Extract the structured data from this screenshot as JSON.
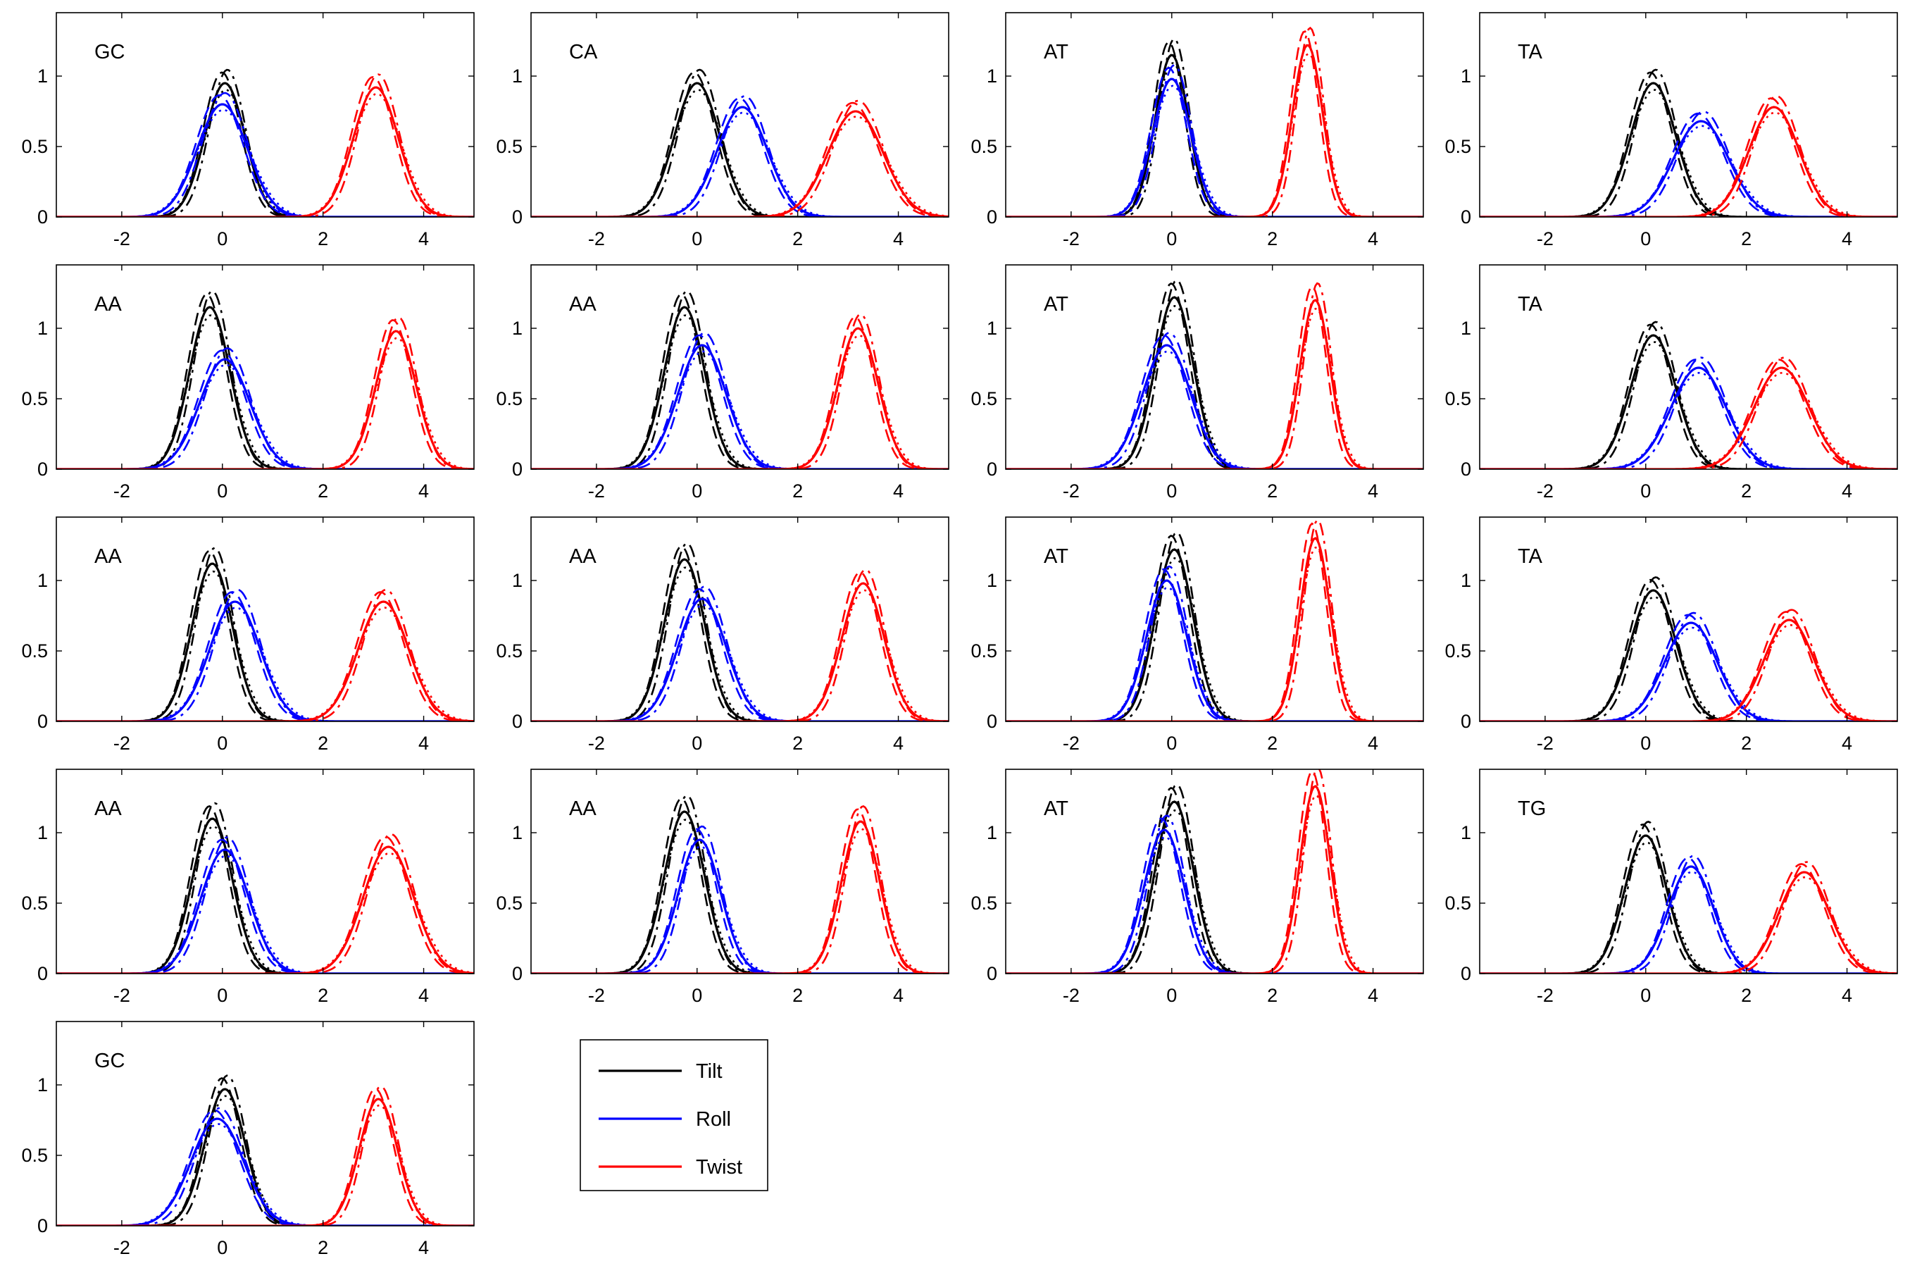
{
  "figure": {
    "xlim": [
      -3.3,
      5
    ],
    "ylim": [
      0,
      1.45
    ],
    "xticks": [
      -2,
      0,
      2,
      4
    ],
    "yticks": [
      0,
      0.5,
      1
    ],
    "ytick_labels": [
      "0",
      "0.5",
      "1"
    ],
    "xtick_labels": [
      "-2",
      "0",
      "2",
      "4"
    ],
    "colors": {
      "Tilt": "#000000",
      "Roll": "#0000ff",
      "Twist": "#ff0000"
    },
    "legend": {
      "items": [
        "Tilt",
        "Roll",
        "Twist"
      ],
      "placement": "below the second column, last row"
    }
  },
  "chart_data": [
    {
      "type": "line",
      "label": "GC",
      "series": [
        {
          "name": "Tilt",
          "mu": 0.05,
          "sigma": 0.4,
          "peak": 0.95
        },
        {
          "name": "Roll",
          "mu": 0,
          "sigma": 0.5,
          "peak": 0.8
        },
        {
          "name": "Twist",
          "mu": 3.05,
          "sigma": 0.45,
          "peak": 0.92
        }
      ]
    },
    {
      "type": "line",
      "label": "CA",
      "series": [
        {
          "name": "Tilt",
          "mu": 0,
          "sigma": 0.45,
          "peak": 0.95
        },
        {
          "name": "Roll",
          "mu": 0.9,
          "sigma": 0.5,
          "peak": 0.78
        },
        {
          "name": "Twist",
          "mu": 3.15,
          "sigma": 0.55,
          "peak": 0.75
        }
      ]
    },
    {
      "type": "line",
      "label": "AT",
      "series": [
        {
          "name": "Tilt",
          "mu": 0,
          "sigma": 0.33,
          "peak": 1.15
        },
        {
          "name": "Roll",
          "mu": 0,
          "sigma": 0.38,
          "peak": 0.98
        },
        {
          "name": "Twist",
          "mu": 2.7,
          "sigma": 0.3,
          "peak": 1.22
        }
      ]
    },
    {
      "type": "line",
      "label": "TA",
      "series": [
        {
          "name": "Tilt",
          "mu": 0.15,
          "sigma": 0.45,
          "peak": 0.95
        },
        {
          "name": "Roll",
          "mu": 1.1,
          "sigma": 0.55,
          "peak": 0.68
        },
        {
          "name": "Twist",
          "mu": 2.55,
          "sigma": 0.5,
          "peak": 0.78
        }
      ]
    },
    {
      "type": "line",
      "label": "AA",
      "series": [
        {
          "name": "Tilt",
          "mu": -0.25,
          "sigma": 0.4,
          "peak": 1.15
        },
        {
          "name": "Roll",
          "mu": 0.05,
          "sigma": 0.5,
          "peak": 0.78
        },
        {
          "name": "Twist",
          "mu": 3.45,
          "sigma": 0.4,
          "peak": 0.98
        }
      ]
    },
    {
      "type": "line",
      "label": "AA",
      "series": [
        {
          "name": "Tilt",
          "mu": -0.25,
          "sigma": 0.4,
          "peak": 1.15
        },
        {
          "name": "Roll",
          "mu": 0.1,
          "sigma": 0.48,
          "peak": 0.88
        },
        {
          "name": "Twist",
          "mu": 3.2,
          "sigma": 0.4,
          "peak": 1.0
        }
      ]
    },
    {
      "type": "line",
      "label": "AT",
      "series": [
        {
          "name": "Tilt",
          "mu": 0.05,
          "sigma": 0.38,
          "peak": 1.22
        },
        {
          "name": "Roll",
          "mu": -0.1,
          "sigma": 0.48,
          "peak": 0.88
        },
        {
          "name": "Twist",
          "mu": 2.85,
          "sigma": 0.3,
          "peak": 1.2
        }
      ]
    },
    {
      "type": "line",
      "label": "TA",
      "series": [
        {
          "name": "Tilt",
          "mu": 0.15,
          "sigma": 0.45,
          "peak": 0.95
        },
        {
          "name": "Roll",
          "mu": 1.05,
          "sigma": 0.55,
          "peak": 0.72
        },
        {
          "name": "Twist",
          "mu": 2.7,
          "sigma": 0.55,
          "peak": 0.72
        }
      ]
    },
    {
      "type": "line",
      "label": "AA",
      "series": [
        {
          "name": "Tilt",
          "mu": -0.2,
          "sigma": 0.4,
          "peak": 1.12
        },
        {
          "name": "Roll",
          "mu": 0.25,
          "sigma": 0.5,
          "peak": 0.85
        },
        {
          "name": "Twist",
          "mu": 3.2,
          "sigma": 0.5,
          "peak": 0.85
        }
      ]
    },
    {
      "type": "line",
      "label": "AA",
      "series": [
        {
          "name": "Tilt",
          "mu": -0.25,
          "sigma": 0.4,
          "peak": 1.15
        },
        {
          "name": "Roll",
          "mu": 0.1,
          "sigma": 0.48,
          "peak": 0.87
        },
        {
          "name": "Twist",
          "mu": 3.3,
          "sigma": 0.42,
          "peak": 0.98
        }
      ]
    },
    {
      "type": "line",
      "label": "AT",
      "series": [
        {
          "name": "Tilt",
          "mu": 0.05,
          "sigma": 0.38,
          "peak": 1.22
        },
        {
          "name": "Roll",
          "mu": -0.1,
          "sigma": 0.4,
          "peak": 1.0
        },
        {
          "name": "Twist",
          "mu": 2.85,
          "sigma": 0.3,
          "peak": 1.3
        }
      ]
    },
    {
      "type": "line",
      "label": "TA",
      "series": [
        {
          "name": "Tilt",
          "mu": 0.15,
          "sigma": 0.45,
          "peak": 0.93
        },
        {
          "name": "Roll",
          "mu": 0.9,
          "sigma": 0.52,
          "peak": 0.7
        },
        {
          "name": "Twist",
          "mu": 2.85,
          "sigma": 0.5,
          "peak": 0.72
        }
      ]
    },
    {
      "type": "line",
      "label": "AA",
      "series": [
        {
          "name": "Tilt",
          "mu": -0.2,
          "sigma": 0.4,
          "peak": 1.1
        },
        {
          "name": "Roll",
          "mu": 0.05,
          "sigma": 0.48,
          "peak": 0.88
        },
        {
          "name": "Twist",
          "mu": 3.3,
          "sigma": 0.5,
          "peak": 0.9
        }
      ]
    },
    {
      "type": "line",
      "label": "AA",
      "series": [
        {
          "name": "Tilt",
          "mu": -0.25,
          "sigma": 0.4,
          "peak": 1.15
        },
        {
          "name": "Roll",
          "mu": 0.05,
          "sigma": 0.42,
          "peak": 0.95
        },
        {
          "name": "Twist",
          "mu": 3.25,
          "sigma": 0.38,
          "peak": 1.08
        }
      ]
    },
    {
      "type": "line",
      "label": "AT",
      "series": [
        {
          "name": "Tilt",
          "mu": 0.05,
          "sigma": 0.38,
          "peak": 1.22
        },
        {
          "name": "Roll",
          "mu": -0.15,
          "sigma": 0.4,
          "peak": 1.02
        },
        {
          "name": "Twist",
          "mu": 2.85,
          "sigma": 0.3,
          "peak": 1.33
        }
      ]
    },
    {
      "type": "line",
      "label": "TG",
      "series": [
        {
          "name": "Tilt",
          "mu": 0,
          "sigma": 0.42,
          "peak": 0.98
        },
        {
          "name": "Roll",
          "mu": 0.9,
          "sigma": 0.45,
          "peak": 0.76
        },
        {
          "name": "Twist",
          "mu": 3.15,
          "sigma": 0.5,
          "peak": 0.72
        }
      ]
    },
    {
      "type": "line",
      "label": "GC",
      "series": [
        {
          "name": "Tilt",
          "mu": 0.05,
          "sigma": 0.4,
          "peak": 0.97
        },
        {
          "name": "Roll",
          "mu": -0.1,
          "sigma": 0.52,
          "peak": 0.76
        },
        {
          "name": "Twist",
          "mu": 3.1,
          "sigma": 0.38,
          "peak": 0.9
        }
      ]
    }
  ]
}
